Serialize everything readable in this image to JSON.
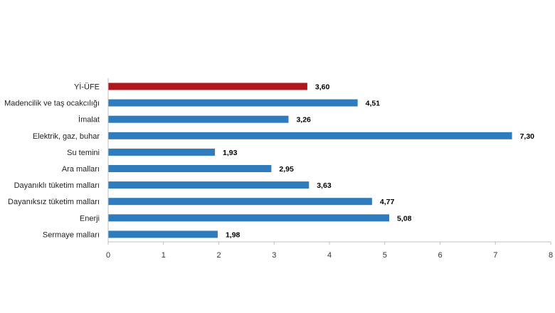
{
  "chart_data": {
    "type": "bar",
    "orientation": "horizontal",
    "title": "",
    "xlabel": "",
    "ylabel": "",
    "categories": [
      "Yİ-ÜFE",
      "Madencilik ve taş ocakcılığı",
      "İmalat",
      "Elektrik, gaz, buhar",
      "Su temini",
      "Ara malları",
      "Dayanıklı tüketim malları",
      "Dayanıksız tüketim malları",
      "Enerji",
      "Sermaye malları"
    ],
    "values": [
      3.6,
      4.51,
      3.26,
      7.3,
      1.93,
      2.95,
      3.63,
      4.77,
      5.08,
      1.98
    ],
    "value_labels": [
      "3,60",
      "4,51",
      "3,26",
      "7,30",
      "1,93",
      "2,95",
      "3,63",
      "4,77",
      "5,08",
      "1,98"
    ],
    "xlim": [
      0,
      8
    ],
    "xticks": [
      "0",
      "1",
      "2",
      "3",
      "4",
      "5",
      "6",
      "7",
      "8"
    ],
    "grid": false,
    "legend": "none",
    "colors": {
      "highlight": "#b0161c",
      "default": "#2e7bbd"
    },
    "highlight_index": 0
  }
}
